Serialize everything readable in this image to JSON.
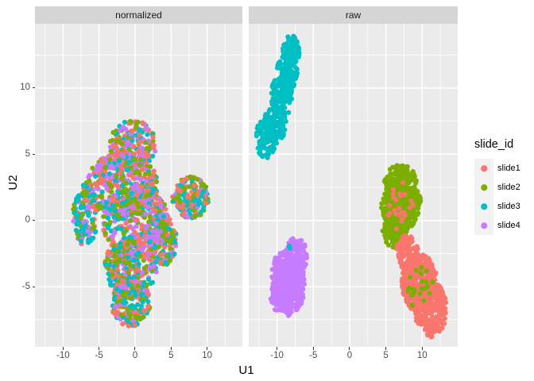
{
  "chart_data": {
    "type": "scatter",
    "title": "",
    "xlabel": "U1",
    "ylabel": "U2",
    "x_ticks": [
      -10,
      -5,
      0,
      5,
      10
    ],
    "y_ticks": [
      -5,
      0,
      5,
      10
    ],
    "x_range": [
      -13.9,
      14.9
    ],
    "y_range": [
      -9.55,
      14.85
    ],
    "grid": "on",
    "panel_bg": "#EBEBEB",
    "strip_bg": "#D5D5D5",
    "grid_color": "#FFFFFF",
    "tick_color": "#333333",
    "tick_label_color": "#4D4D4D",
    "point_radius": 3.1,
    "colors": {
      "slide1": "#F8766D",
      "slide2": "#7CAE00",
      "slide3": "#00BFC4",
      "slide4": "#C77CFF"
    },
    "legend": {
      "title": "slide_id",
      "position": "right",
      "entries": [
        {
          "label": "slide1",
          "color": "#F8766D"
        },
        {
          "label": "slide2",
          "color": "#7CAE00"
        },
        {
          "label": "slide3",
          "color": "#00BFC4"
        },
        {
          "label": "slide4",
          "color": "#C77CFF"
        }
      ]
    },
    "facets": [
      {
        "label": "normalized",
        "description": "single large mixed cluster of all four slides, x -8.5..10, y -8..7.7",
        "clusters": [
          {
            "cx": -0.3,
            "cy": 5.6,
            "rx": 3.2,
            "ry": 2.0,
            "n": 220,
            "mix": {
              "slide1": 0.27,
              "slide2": 0.25,
              "slide3": 0.24,
              "slide4": 0.24
            }
          },
          {
            "cx": -1.8,
            "cy": 2.6,
            "rx": 5.0,
            "ry": 2.5,
            "n": 400,
            "mix": {
              "slide1": 0.27,
              "slide2": 0.25,
              "slide3": 0.24,
              "slide4": 0.24
            }
          },
          {
            "cx": 0.0,
            "cy": 0.0,
            "rx": 4.6,
            "ry": 2.7,
            "n": 400,
            "mix": {
              "slide1": 0.27,
              "slide2": 0.25,
              "slide3": 0.24,
              "slide4": 0.24
            }
          },
          {
            "cx": -0.6,
            "cy": -3.5,
            "rx": 3.6,
            "ry": 2.3,
            "n": 290,
            "mix": {
              "slide1": 0.27,
              "slide2": 0.25,
              "slide3": 0.24,
              "slide4": 0.24
            }
          },
          {
            "cx": -0.6,
            "cy": -6.2,
            "rx": 2.7,
            "ry": 1.8,
            "n": 190,
            "mix": {
              "slide1": 0.27,
              "slide2": 0.25,
              "slide3": 0.24,
              "slide4": 0.24
            }
          },
          {
            "cx": -6.9,
            "cy": 0.4,
            "rx": 1.7,
            "ry": 2.3,
            "n": 130,
            "mix": {
              "slide3": 0.5,
              "slide1": 0.17,
              "slide2": 0.17,
              "slide4": 0.16
            }
          },
          {
            "cx": 3.9,
            "cy": -1.4,
            "rx": 2.0,
            "ry": 2.0,
            "n": 150,
            "mix": {
              "slide1": 0.27,
              "slide2": 0.25,
              "slide3": 0.24,
              "slide4": 0.24
            }
          },
          {
            "cx": 7.7,
            "cy": 1.7,
            "rx": 2.5,
            "ry": 1.6,
            "n": 160,
            "mix": {
              "slide3": 0.4,
              "slide2": 0.28,
              "slide1": 0.22,
              "slide4": 0.1
            }
          }
        ]
      },
      {
        "label": "raw",
        "description": "four separated clusters: slide3 top-left diagonal, slide4 lower-left blob, slide2 mid-right, slide1 bottom-right",
        "clusters": [
          {
            "cx": -11.5,
            "cy": 6.2,
            "rx": 1.5,
            "ry": 1.5,
            "n": 100,
            "color": "slide3"
          },
          {
            "cx": -10.2,
            "cy": 7.4,
            "rx": 1.5,
            "ry": 1.5,
            "n": 100,
            "color": "slide3"
          },
          {
            "cx": -9.4,
            "cy": 9.3,
            "rx": 1.5,
            "ry": 1.6,
            "n": 110,
            "color": "slide3"
          },
          {
            "cx": -8.6,
            "cy": 11.2,
            "rx": 1.4,
            "ry": 1.5,
            "n": 100,
            "color": "slide3"
          },
          {
            "cx": -8.0,
            "cy": 12.9,
            "rx": 1.2,
            "ry": 1.1,
            "n": 90,
            "color": "slide3"
          },
          {
            "cx": -8.4,
            "cy": -5.0,
            "rx": 2.2,
            "ry": 2.2,
            "n": 290,
            "color": "slide4"
          },
          {
            "cx": -7.4,
            "cy": -2.8,
            "rx": 1.6,
            "ry": 1.5,
            "n": 130,
            "color": "slide4"
          },
          {
            "cx": -9.4,
            "cy": -3.8,
            "rx": 1.4,
            "ry": 1.4,
            "n": 90,
            "color": "slide4"
          },
          {
            "cx": -9.8,
            "cy": -5.8,
            "rx": 1.1,
            "ry": 1.1,
            "n": 50,
            "color": "slide4"
          },
          {
            "cx": -8.4,
            "cy": -2.1,
            "rx": 0.2,
            "ry": 0.2,
            "n": 2,
            "color": "slide3"
          },
          {
            "cx": 7.0,
            "cy": 2.9,
            "rx": 2.2,
            "ry": 1.3,
            "n": 150,
            "color": "slide2"
          },
          {
            "cx": 6.9,
            "cy": 0.9,
            "rx": 2.6,
            "ry": 1.8,
            "n": 290,
            "color": "slide2"
          },
          {
            "cx": 6.3,
            "cy": -0.9,
            "rx": 1.8,
            "ry": 1.2,
            "n": 120,
            "color": "slide2"
          },
          {
            "cx": 8.9,
            "cy": 1.6,
            "rx": 0.9,
            "ry": 0.9,
            "n": 50,
            "color": "slide2"
          },
          {
            "cx": 7.1,
            "cy": 1.0,
            "rx": 1.9,
            "ry": 1.9,
            "n": 26,
            "color": "slide1"
          },
          {
            "cx": 7.9,
            "cy": -2.4,
            "rx": 1.5,
            "ry": 1.3,
            "n": 120,
            "color": "slide1"
          },
          {
            "cx": 9.6,
            "cy": -4.7,
            "rx": 2.4,
            "ry": 2.2,
            "n": 360,
            "color": "slide1"
          },
          {
            "cx": 11.2,
            "cy": -6.7,
            "rx": 2.2,
            "ry": 2.1,
            "n": 270,
            "color": "slide1"
          },
          {
            "cx": 9.9,
            "cy": -5.2,
            "rx": 2.0,
            "ry": 1.8,
            "n": 24,
            "color": "slide2"
          }
        ]
      }
    ]
  }
}
